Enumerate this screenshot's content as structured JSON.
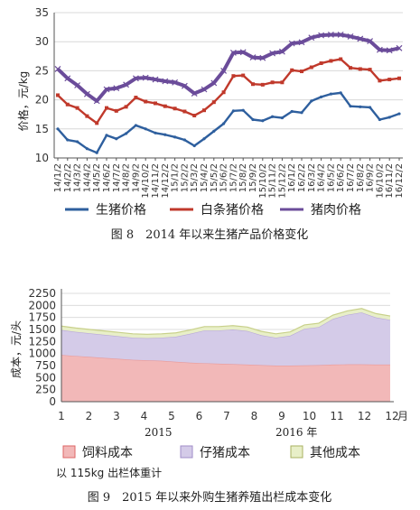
{
  "chart_data": [
    {
      "type": "line",
      "caption": "图 8　2014 年以来生猪产品价格变化",
      "ylabel": "价格，元/kg",
      "ylim": [
        10,
        35
      ],
      "yticks": [
        10,
        15,
        20,
        25,
        30,
        35
      ],
      "x_tick_labels": [
        "14/1/2",
        "14/2/2",
        "14/3/2",
        "14/4/2",
        "14/5/2",
        "14/6/2",
        "14/7/2",
        "14/8/2",
        "14/9/2",
        "14/10/2",
        "14/11/2",
        "14/12/2",
        "15/1/2",
        "15/2/2",
        "15/3/2",
        "15/4/2",
        "15/5/2",
        "15/6/2",
        "15/7/2",
        "15/8/2",
        "15/9/2",
        "15/10/2",
        "15/11/2",
        "15/12/2",
        "16/1/2",
        "16/2/2",
        "16/3/2",
        "16/4/2",
        "16/5/2",
        "16/6/2",
        "16/7/2",
        "16/8/2",
        "16/9/2",
        "16/10/2",
        "16/11/2",
        "16/12/2"
      ],
      "series": [
        {
          "name": "生猪价格",
          "color": "#2e5f9e",
          "values": [
            15.0,
            13.1,
            12.8,
            11.6,
            10.9,
            13.9,
            13.3,
            14.2,
            15.6,
            15.0,
            14.3,
            14.0,
            13.6,
            13.1,
            12.1,
            13.3,
            14.6,
            15.9,
            18.1,
            18.2,
            16.6,
            16.4,
            17.1,
            16.9,
            18.0,
            17.8,
            19.8,
            20.5,
            21.0,
            21.2,
            18.9,
            18.8,
            18.7,
            16.6,
            17.0,
            17.6
          ]
        },
        {
          "name": "白条猪价格",
          "color": "#c0392b",
          "values": [
            20.8,
            19.2,
            18.6,
            17.2,
            16.0,
            18.6,
            18.1,
            18.8,
            20.4,
            19.7,
            19.4,
            18.9,
            18.5,
            18.0,
            17.3,
            18.2,
            19.6,
            21.3,
            24.1,
            24.2,
            22.7,
            22.6,
            23.0,
            23.0,
            25.1,
            24.9,
            25.6,
            26.3,
            26.7,
            27.0,
            25.5,
            25.3,
            25.2,
            23.3,
            23.5,
            23.7
          ]
        },
        {
          "name": "猪肉价格",
          "color": "#6b4c9a",
          "values": [
            25.3,
            23.7,
            22.5,
            21.0,
            19.8,
            21.8,
            22.0,
            22.6,
            23.7,
            23.8,
            23.5,
            23.2,
            23.0,
            22.4,
            21.1,
            21.8,
            22.9,
            25.0,
            28.1,
            28.2,
            27.3,
            27.2,
            28.0,
            28.3,
            29.7,
            29.9,
            30.7,
            31.1,
            31.2,
            31.2,
            30.9,
            30.5,
            30.1,
            28.6,
            28.5,
            28.9
          ]
        }
      ]
    },
    {
      "type": "area",
      "stacked": true,
      "caption": "图 9　2015 年以来外购生猪养殖出栏成本变化",
      "ylabel": "成本，元/头",
      "ylim": [
        0,
        2250
      ],
      "yticks": [
        0,
        250,
        500,
        750,
        1000,
        1250,
        1500,
        1750,
        2000,
        2250
      ],
      "categories": [
        "1",
        "2",
        "3",
        "4",
        "5",
        "6",
        "7",
        "8",
        "9",
        "10",
        "11",
        "12",
        "1",
        "2",
        "3",
        "4",
        "5",
        "6",
        "7",
        "8",
        "9",
        "10",
        "11",
        "12"
      ],
      "month_unit": "月",
      "year_labels": [
        "2015",
        "2016 年"
      ],
      "series": [
        {
          "name": "饲料成本",
          "color": "#f2b8b8",
          "values": [
            970,
            950,
            930,
            910,
            890,
            870,
            860,
            850,
            830,
            810,
            800,
            790,
            780,
            770,
            760,
            750,
            750,
            755,
            760,
            770,
            775,
            775,
            770,
            770
          ]
        },
        {
          "name": "仔猪成本",
          "color": "#d4cbe8",
          "values": [
            520,
            500,
            490,
            480,
            470,
            460,
            460,
            480,
            520,
            600,
            680,
            690,
            720,
            700,
            620,
            580,
            620,
            760,
            790,
            950,
            1030,
            1080,
            980,
            930
          ]
        },
        {
          "name": "其他成本",
          "color": "#e8efc8",
          "values": [
            80,
            80,
            80,
            80,
            80,
            80,
            80,
            80,
            80,
            80,
            80,
            80,
            80,
            80,
            80,
            80,
            80,
            80,
            80,
            80,
            80,
            80,
            80,
            80
          ]
        }
      ],
      "note": "以 115kg 出栏体重计"
    }
  ]
}
